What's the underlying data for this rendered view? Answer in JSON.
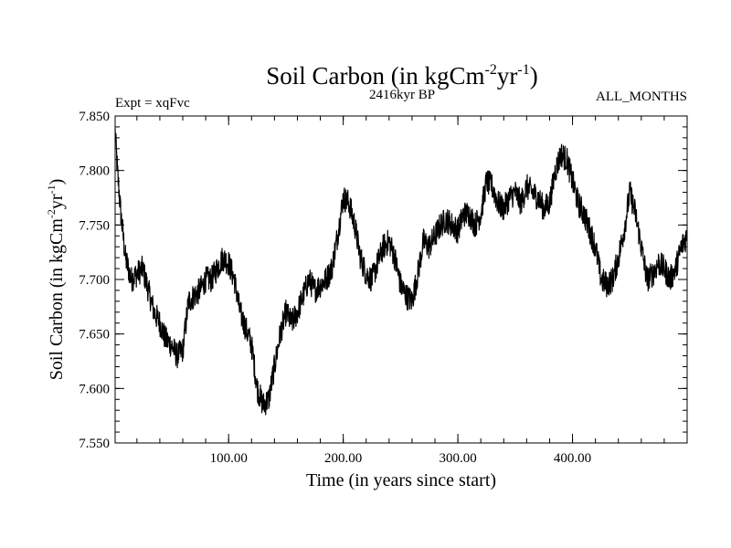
{
  "chart_data": {
    "type": "line",
    "title_main": "Soil Carbon (in kgCm",
    "title_sup1": "-2",
    "title_mid": "yr",
    "title_sup2": "-1",
    "title_end": ")",
    "subtitle": "2416kyr BP",
    "experiment": "Expt = xqFvc",
    "months": "ALL_MONTHS",
    "xlabel": "Time (in years since start)",
    "ylabel_main": "Soil Carbon (in kgCm",
    "ylabel_sup1": "-2",
    "ylabel_mid": "yr",
    "ylabel_sup2": "-1",
    "ylabel_end": ")",
    "xlim": [
      1,
      500
    ],
    "ylim": [
      7.55,
      7.85
    ],
    "xticks": [
      100,
      200,
      300,
      400
    ],
    "xtick_labels": [
      "100.00",
      "200.00",
      "300.00",
      "400.00"
    ],
    "yticks": [
      7.55,
      7.6,
      7.65,
      7.7,
      7.75,
      7.8,
      7.85
    ],
    "ytick_labels": [
      "7.550",
      "7.600",
      "7.650",
      "7.700",
      "7.750",
      "7.800",
      "7.850"
    ],
    "grid": false,
    "series": [
      {
        "name": "Soil Carbon",
        "color": "#000000",
        "noise_amplitude": 0.012,
        "x": [
          1,
          3,
          6,
          10,
          15,
          20,
          25,
          30,
          35,
          40,
          45,
          50,
          55,
          60,
          65,
          70,
          75,
          80,
          85,
          90,
          95,
          100,
          105,
          110,
          115,
          120,
          125,
          130,
          135,
          140,
          145,
          150,
          155,
          160,
          165,
          170,
          175,
          180,
          185,
          190,
          195,
          200,
          205,
          210,
          215,
          220,
          225,
          230,
          235,
          240,
          245,
          250,
          255,
          260,
          265,
          270,
          275,
          280,
          285,
          290,
          295,
          300,
          305,
          310,
          315,
          320,
          325,
          330,
          335,
          340,
          345,
          350,
          355,
          360,
          365,
          370,
          375,
          380,
          385,
          390,
          395,
          400,
          405,
          410,
          415,
          420,
          425,
          430,
          435,
          440,
          445,
          450,
          455,
          460,
          465,
          470,
          475,
          480,
          485,
          490,
          495,
          500
        ],
        "values": [
          7.835,
          7.8,
          7.76,
          7.72,
          7.7,
          7.705,
          7.71,
          7.69,
          7.67,
          7.66,
          7.645,
          7.64,
          7.63,
          7.635,
          7.68,
          7.685,
          7.69,
          7.7,
          7.7,
          7.71,
          7.72,
          7.715,
          7.7,
          7.67,
          7.655,
          7.64,
          7.6,
          7.585,
          7.59,
          7.62,
          7.65,
          7.67,
          7.66,
          7.67,
          7.685,
          7.7,
          7.69,
          7.695,
          7.7,
          7.71,
          7.74,
          7.775,
          7.77,
          7.75,
          7.72,
          7.705,
          7.7,
          7.715,
          7.73,
          7.735,
          7.72,
          7.695,
          7.685,
          7.68,
          7.705,
          7.735,
          7.73,
          7.74,
          7.75,
          7.755,
          7.75,
          7.745,
          7.76,
          7.76,
          7.75,
          7.76,
          7.79,
          7.785,
          7.77,
          7.765,
          7.775,
          7.78,
          7.77,
          7.785,
          7.78,
          7.775,
          7.765,
          7.77,
          7.8,
          7.815,
          7.81,
          7.79,
          7.77,
          7.76,
          7.745,
          7.73,
          7.7,
          7.695,
          7.7,
          7.72,
          7.745,
          7.78,
          7.76,
          7.73,
          7.7,
          7.705,
          7.715,
          7.71,
          7.7,
          7.71,
          7.73,
          7.74
        ]
      }
    ]
  }
}
